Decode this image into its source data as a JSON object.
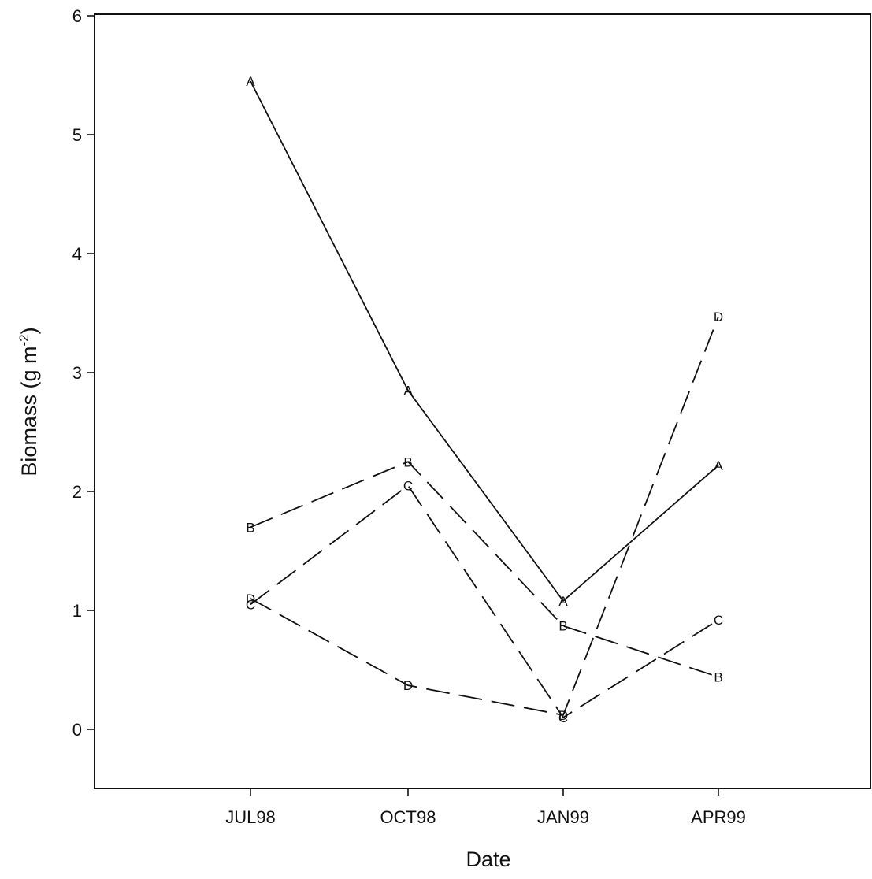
{
  "chart_data": {
    "type": "line",
    "xlabel": "Date",
    "ylabel_main": "Biomass (g m",
    "ylabel_sup": "-2",
    "ylabel_close": ")",
    "categories": [
      "JUL98",
      "OCT98",
      "JAN99",
      "APR99"
    ],
    "ylim": [
      -0.5,
      6
    ],
    "yticks": [
      0,
      1,
      2,
      3,
      4,
      5,
      6
    ],
    "grid": false,
    "legend": "none",
    "series": [
      {
        "marker": "A",
        "line_style": "solid",
        "values": [
          5.45,
          2.85,
          1.08,
          2.22
        ]
      },
      {
        "marker": "B",
        "line_style": "dashed",
        "values": [
          1.7,
          2.25,
          0.87,
          0.44
        ]
      },
      {
        "marker": "C",
        "line_style": "dashed",
        "values": [
          1.05,
          2.05,
          0.1,
          0.92
        ]
      },
      {
        "marker": "D",
        "line_style": "dashed",
        "values": [
          1.1,
          0.37,
          0.12,
          3.47
        ]
      }
    ],
    "colors": {
      "ink": "#111111",
      "background": "#ffffff"
    }
  }
}
